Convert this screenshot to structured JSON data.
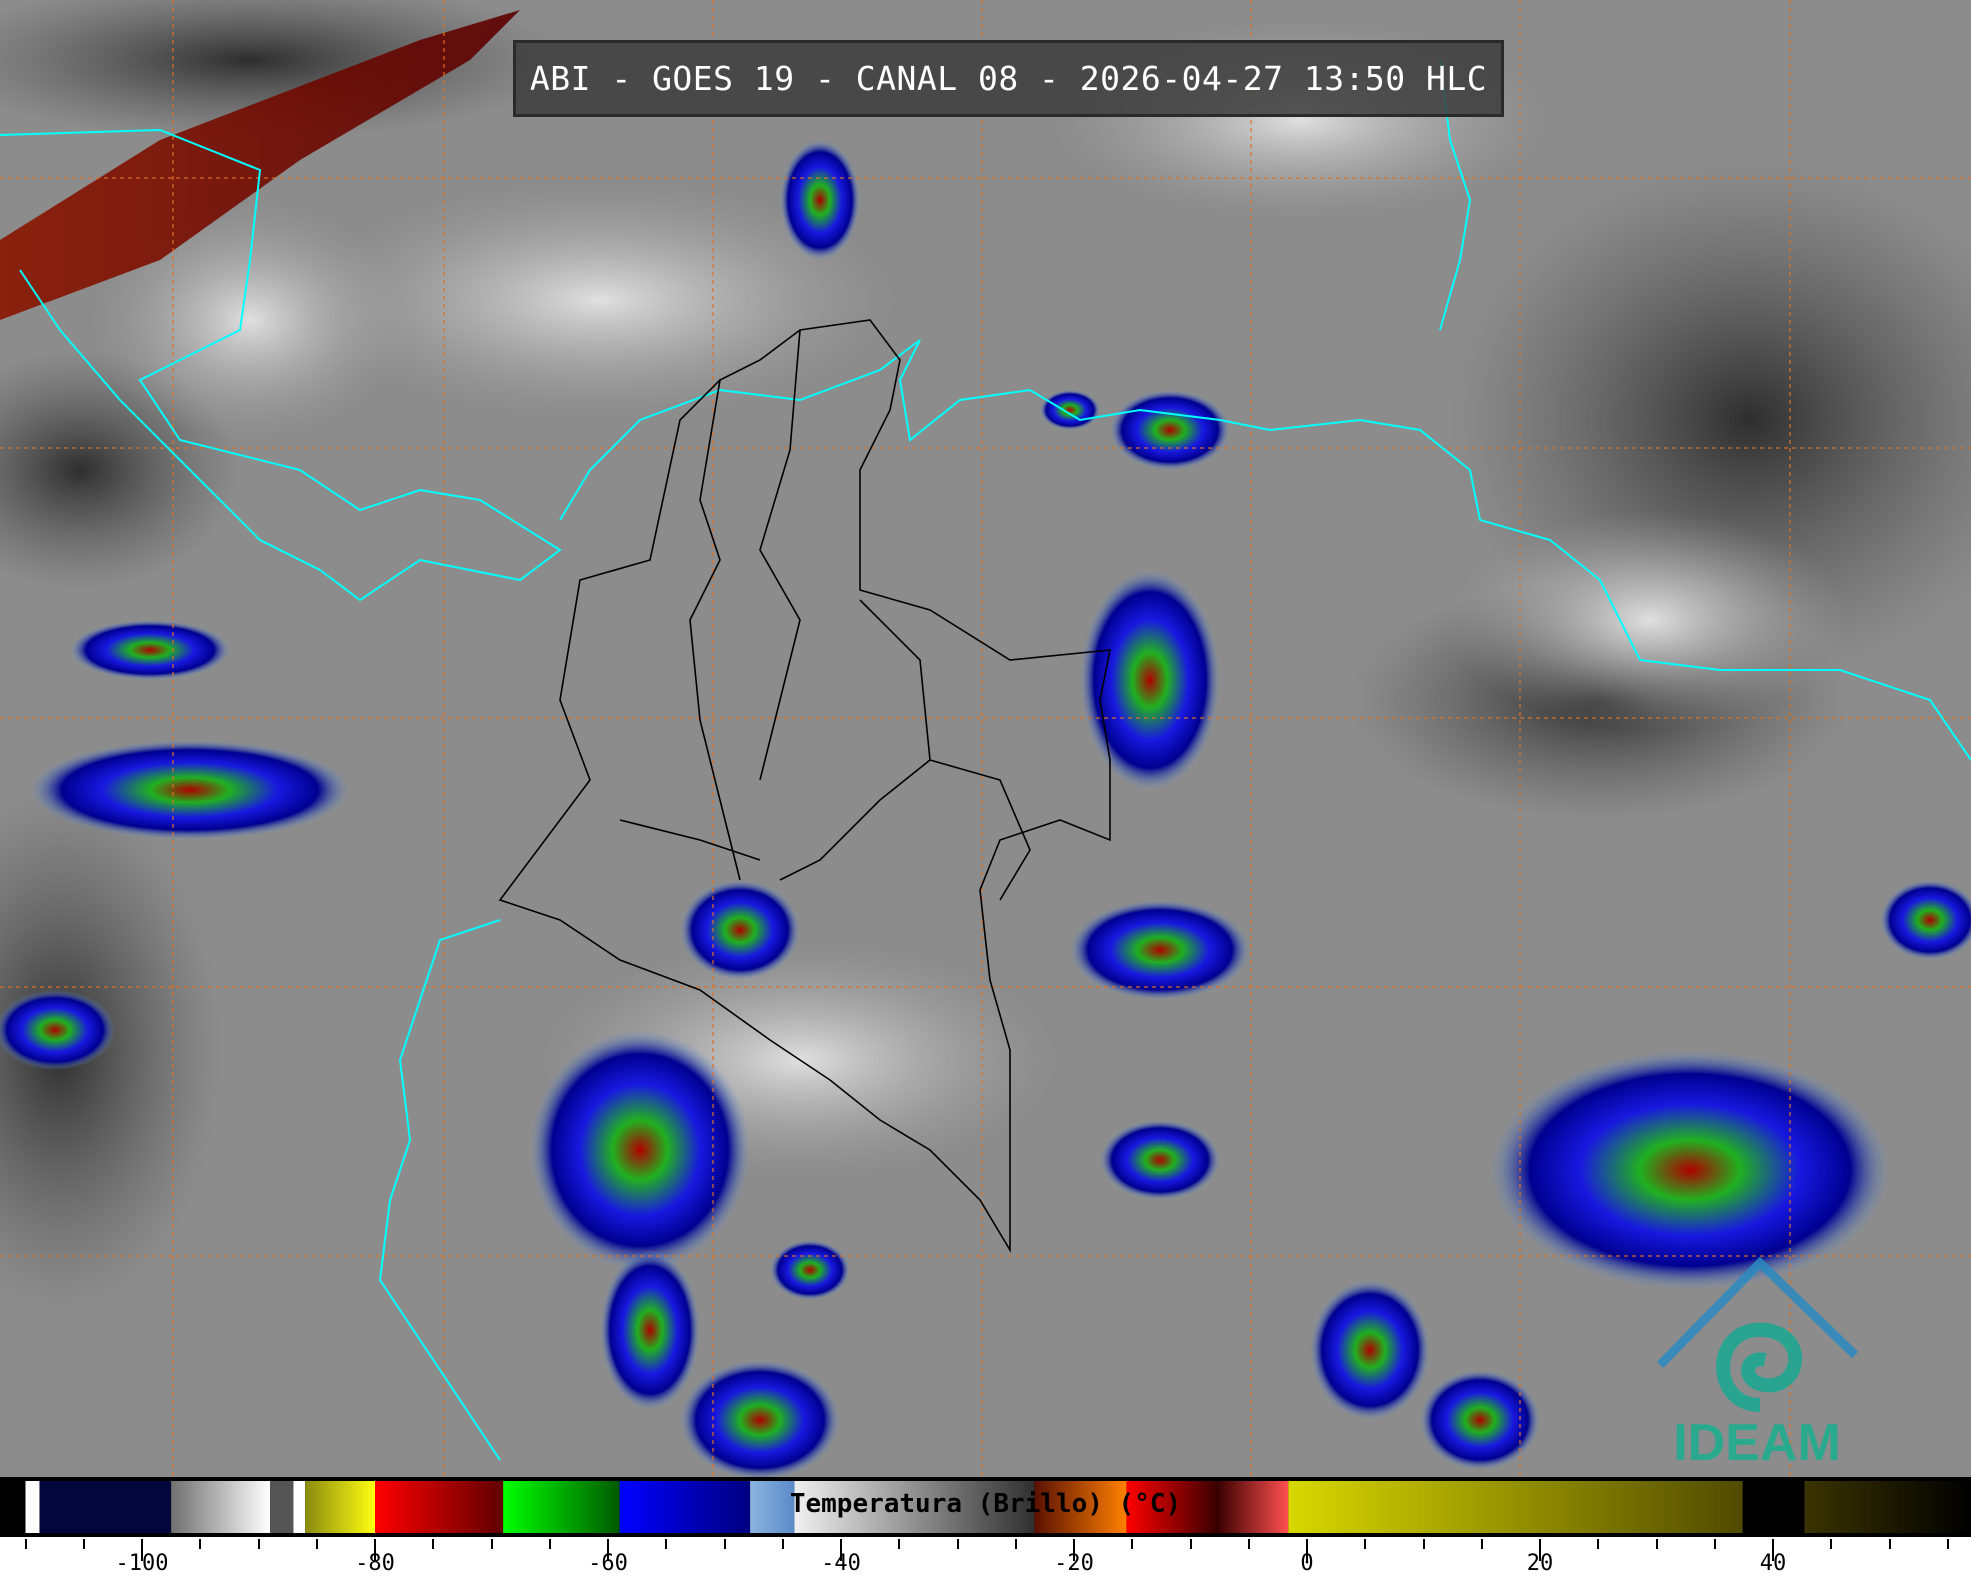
{
  "title": "ABI - GOES 19 - CANAL 08 - 2026-04-27 13:50 HLC",
  "colorbar": {
    "label": "Temperatura (Brillo) (°C)",
    "ticks": [
      "-100",
      "-80",
      "-60",
      "-40",
      "-20",
      "0",
      "20",
      "40"
    ],
    "range_c": [
      -110,
      57
    ],
    "segments": [
      {
        "from": -110,
        "to": -108.8,
        "colors": [
          "#ffffff",
          "#ffffff"
        ]
      },
      {
        "from": -108.8,
        "to": -97.5,
        "colors": [
          "#02063a",
          "#02063a"
        ]
      },
      {
        "from": -97.5,
        "to": -89,
        "colors": [
          "#707070",
          "#ffffff"
        ]
      },
      {
        "from": -89,
        "to": -87,
        "colors": [
          "#555555",
          "#555555"
        ]
      },
      {
        "from": -87,
        "to": -86,
        "colors": [
          "#ffffff",
          "#ffffff"
        ]
      },
      {
        "from": -86,
        "to": -80,
        "colors": [
          "#8a8a10",
          "#ffff10"
        ]
      },
      {
        "from": -80,
        "to": -69,
        "colors": [
          "#ff0000",
          "#600000"
        ]
      },
      {
        "from": -69,
        "to": -59,
        "colors": [
          "#00ff00",
          "#005a00"
        ]
      },
      {
        "from": -59,
        "to": -47.8,
        "colors": [
          "#0000ff",
          "#000080"
        ]
      },
      {
        "from": -47.8,
        "to": -44,
        "colors": [
          "#8cb4e0",
          "#5a8ac8"
        ]
      },
      {
        "from": -44,
        "to": -23.4,
        "colors": [
          "#f0f0f0",
          "#303030"
        ]
      },
      {
        "from": -23.4,
        "to": -15.5,
        "colors": [
          "#5a1000",
          "#ff8000"
        ]
      },
      {
        "from": -15.5,
        "to": -7.7,
        "colors": [
          "#ff0000",
          "#3a0000"
        ]
      },
      {
        "from": -7.7,
        "to": -1.6,
        "colors": [
          "#3a0000",
          "#ff5050"
        ]
      },
      {
        "from": -1.6,
        "to": 37.4,
        "colors": [
          "#d8d800",
          "#504a00"
        ]
      },
      {
        "from": 37.4,
        "to": 42.7,
        "colors": [
          "#000000",
          "#000000"
        ]
      },
      {
        "from": 42.7,
        "to": 57,
        "colors": [
          "#3a3400",
          "#000000"
        ]
      }
    ]
  },
  "logo": {
    "text": "IDEAM"
  },
  "colors": {
    "coastline": "#00ffff",
    "grid": "#e07020",
    "borders": "#000000"
  }
}
